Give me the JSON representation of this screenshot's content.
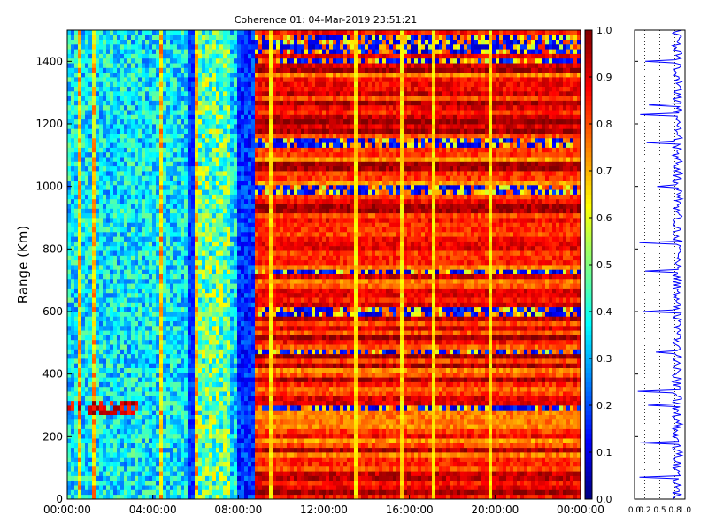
{
  "chart_data": [
    {
      "type": "heatmap",
      "title": "Coherence 01: 04-Mar-2019 23:51:21",
      "ylabel": "Range (Km)",
      "xlabel": "",
      "x_ticks": [
        "00:00:00",
        "04:00:00",
        "08:00:00",
        "12:00:00",
        "16:00:00",
        "20:00:00",
        "00:00:00"
      ],
      "y_ticks": [
        0,
        200,
        400,
        600,
        800,
        1000,
        1200,
        1400
      ],
      "x_range_hours": [
        0,
        24
      ],
      "ylim": [
        0,
        1500
      ],
      "colormap": "jet",
      "colorbar": {
        "range": [
          0,
          1
        ],
        "ticks": [
          "0.0",
          "0.1",
          "0.2",
          "0.3",
          "0.4",
          "0.5",
          "0.6",
          "0.7",
          "0.8",
          "0.9",
          "1.0"
        ]
      },
      "regions": [
        {
          "x_hours": [
            0,
            8.75
          ],
          "approx_value": 0.35
        },
        {
          "x_hours": [
            8.75,
            24
          ],
          "approx_value": 0.88
        }
      ],
      "low_coherence_bands_km": [
        1470,
        1440,
        1400,
        1140,
        990,
        730,
        600,
        475,
        290
      ],
      "feature_band_km": {
        "x_hours": [
          0,
          3.3
        ],
        "range_km": [
          275,
          320
        ],
        "value": 0.9
      }
    },
    {
      "type": "line",
      "ylim": [
        0,
        1500
      ],
      "xlim": [
        0,
        1
      ],
      "x_ticks": [
        "0.0",
        "0.2",
        "0.5",
        "0.8",
        "1.0"
      ],
      "description_values": "mean coherence per range",
      "typical_value": 0.85,
      "dips_km": [
        1400,
        1260,
        1230,
        1140,
        1000,
        820,
        730,
        600,
        470,
        345,
        300,
        180,
        70
      ]
    }
  ]
}
